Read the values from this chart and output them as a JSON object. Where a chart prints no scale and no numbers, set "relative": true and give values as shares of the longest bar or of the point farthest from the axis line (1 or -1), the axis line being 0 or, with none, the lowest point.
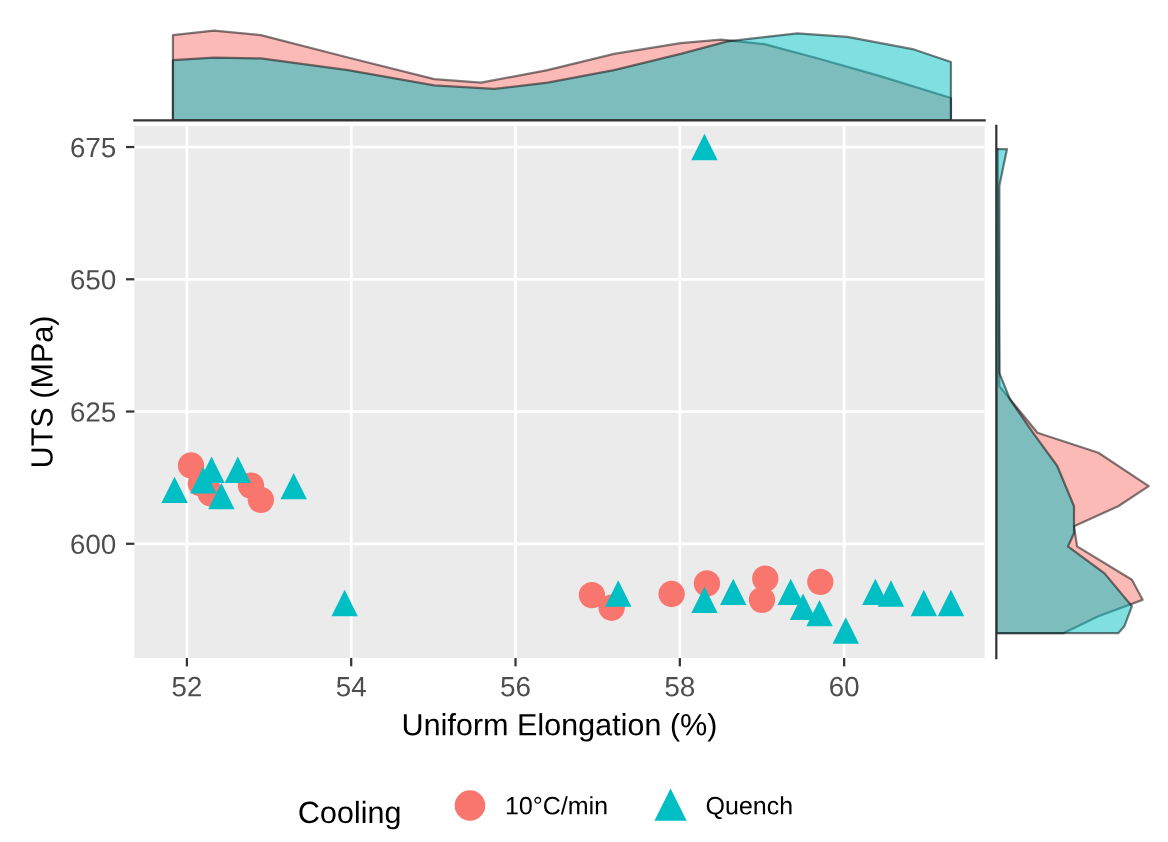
{
  "chart_data": [
    {
      "type": "area",
      "relative": true,
      "xlim": [
        51.36,
        61.71
      ],
      "tick_labels": false,
      "series": [
        {
          "color": "#f8766d",
          "x": [
            51.83,
            52.33,
            52.9,
            53.96,
            55.01,
            55.58,
            56.39,
            57.2,
            58.01,
            58.5,
            59.03,
            59.64,
            60.45,
            61.3
          ],
          "values": [
            0.95,
            1,
            0.95,
            0.7,
            0.46,
            0.42,
            0.56,
            0.74,
            0.86,
            0.9,
            0.85,
            0.7,
            0.49,
            0.25
          ]
        },
        {
          "color": "#00bfc4",
          "x": [
            51.83,
            52.33,
            52.9,
            53.96,
            55.01,
            55.74,
            56.39,
            57.2,
            58.01,
            58.58,
            59.43,
            60.04,
            60.85,
            61.3
          ],
          "values": [
            0.67,
            0.7,
            0.69,
            0.56,
            0.39,
            0.35,
            0.42,
            0.56,
            0.74,
            0.88,
            0.97,
            0.93,
            0.79,
            0.65
          ]
        }
      ]
    },
    {
      "type": "scatter",
      "xlabel": "Uniform Elongation (%)",
      "ylabel": "UTS (MPa)",
      "xlim": [
        51.36,
        61.71
      ],
      "ylim": [
        578.4,
        679
      ],
      "xticks": [
        52,
        54,
        56,
        58,
        60
      ],
      "yticks": [
        600,
        625,
        650,
        675
      ],
      "grid": true,
      "legend": "bottom",
      "legend_title": "Cooling",
      "series": [
        {
          "name": "10°C/min",
          "color": "#f8766d",
          "marker": "circle",
          "x": [
            52.05,
            52.17,
            52.29,
            52.78,
            52.9,
            56.93,
            57.17,
            57.9,
            58.33,
            59.04,
            59.0,
            59.71
          ],
          "values": [
            614.8,
            611.4,
            609.5,
            611.0,
            608.3,
            590.3,
            587.9,
            590.5,
            592.5,
            593.4,
            589.4,
            592.8
          ]
        },
        {
          "name": "Quench",
          "color": "#00bfc4",
          "marker": "triangle",
          "x": [
            51.85,
            52.2,
            52.3,
            52.42,
            52.62,
            53.3,
            53.92,
            58.3,
            57.25,
            58.3,
            58.65,
            59.35,
            59.5,
            59.7,
            60.02,
            60.38,
            60.57,
            60.97,
            61.3
          ],
          "values": [
            610.2,
            612,
            614,
            609,
            614,
            610.9,
            588.8,
            675,
            590.6,
            589.4,
            590.9,
            590.9,
            588.1,
            586.9,
            583.6,
            590.9,
            590.6,
            588.8,
            588.8
          ]
        }
      ]
    },
    {
      "type": "area",
      "relative": true,
      "orientation": "horizontal",
      "ylim": [
        578.4,
        679
      ],
      "tick_labels": false,
      "series": [
        {
          "color": "#f8766d",
          "x": [
            674.6,
            629.8,
            621,
            617.2,
            610.9,
            607.1,
            603.3,
            599.5,
            593.2,
            589.4,
            586.3,
            583.1
          ],
          "values": [
            0.01,
            0.02,
            0.27,
            0.67,
            1,
            0.8,
            0.51,
            0.53,
            0.89,
            0.96,
            0.67,
            0.44
          ]
        },
        {
          "color": "#00bfc4",
          "x": [
            674.6,
            667.7,
            632.3,
            627.3,
            621,
            614.7,
            607.1,
            602,
            599.5,
            594.4,
            588.2,
            584.4,
            583.1
          ],
          "values": [
            0.07,
            0.02,
            0.02,
            0.09,
            0.24,
            0.4,
            0.51,
            0.51,
            0.47,
            0.71,
            0.89,
            0.84,
            0.8
          ]
        }
      ]
    }
  ]
}
